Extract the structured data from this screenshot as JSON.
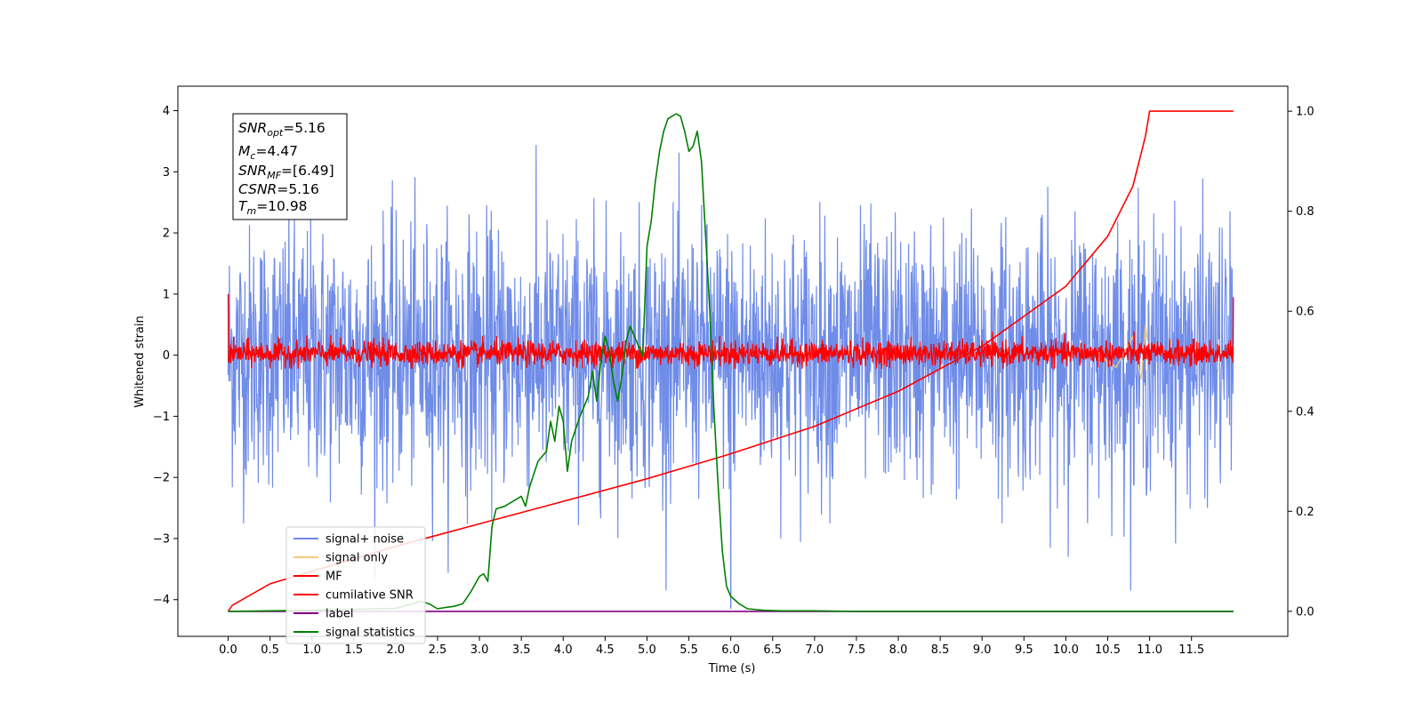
{
  "chart_data": {
    "type": "line",
    "xlabel": "Time (s)",
    "ylabel": "Whitened strain",
    "xlim": [
      -0.6,
      12.65
    ],
    "ylim": [
      -4.6,
      4.4
    ],
    "y2lim": [
      -0.05,
      1.05
    ],
    "xticks": [
      0.0,
      0.5,
      1.0,
      1.5,
      2.0,
      2.5,
      3.0,
      3.5,
      4.0,
      4.5,
      5.0,
      5.5,
      6.0,
      6.5,
      7.0,
      7.5,
      8.0,
      8.5,
      9.0,
      9.5,
      10.0,
      10.5,
      11.0,
      11.5
    ],
    "xtick_labels": [
      "0.0",
      "0.5",
      "1.0",
      "1.5",
      "2.0",
      "2.5",
      "3.0",
      "3.5",
      "4.0",
      "4.5",
      "5.0",
      "5.5",
      "6.0",
      "6.5",
      "7.0",
      "7.5",
      "8.0",
      "8.5",
      "9.0",
      "9.5",
      "10.0",
      "10.5",
      "11.0",
      "11.5"
    ],
    "yticks": [
      4,
      3,
      2,
      1,
      0,
      -1,
      -2,
      -3,
      -4
    ],
    "ytick_labels": [
      "4",
      "3",
      "2",
      "1",
      "0",
      "−1",
      "−2",
      "−3",
      "−4"
    ],
    "y2ticks": [
      1.0,
      0.8,
      0.6,
      0.4,
      0.2,
      0.0
    ],
    "y2tick_labels": [
      "1.0",
      "0.8",
      "0.6",
      "0.4",
      "0.2",
      "0.0"
    ],
    "grid": false,
    "legend_position": "bottom-left",
    "series": [
      {
        "name": "signal+ noise",
        "color": "#6f8ce8",
        "axis": "left",
        "description": "noisy strain, std ~1, x 0 to 12, peaks to about +4 and -3.8"
      },
      {
        "name": "signal only",
        "color": "#f5c97a",
        "axis": "left",
        "x": [
          10.3,
          10.6,
          10.8,
          10.9,
          10.95,
          11.0
        ],
        "y": [
          0.1,
          -0.2,
          0.3,
          -0.4,
          0.5,
          0.0
        ]
      },
      {
        "name": "MF",
        "color": "#ff0000",
        "axis": "left",
        "description": "matched filter output, band about -0.2 to +0.3, spikes to 1.0 at the ends"
      },
      {
        "name": "cumilative SNR",
        "color": "#ff0000",
        "axis": "right",
        "x": [
          0.0,
          0.05,
          0.5,
          1.0,
          2.0,
          3.0,
          4.0,
          5.0,
          6.0,
          7.0,
          8.0,
          9.0,
          9.5,
          10.0,
          10.5,
          10.8,
          10.95,
          11.0,
          12.0
        ],
        "y": [
          0.0,
          0.012,
          0.055,
          0.08,
          0.13,
          0.175,
          0.22,
          0.265,
          0.315,
          0.37,
          0.44,
          0.53,
          0.59,
          0.65,
          0.75,
          0.85,
          0.95,
          1.0,
          1.0
        ]
      },
      {
        "name": "label",
        "color": "#800080",
        "axis": "right",
        "x": [
          0.0,
          12.0
        ],
        "y": [
          0.0,
          0.0
        ]
      },
      {
        "name": "signal statistics",
        "color": "#008000",
        "axis": "right",
        "x": [
          0.0,
          1.0,
          2.0,
          2.2,
          2.3,
          2.4,
          2.5,
          2.6,
          2.7,
          2.8,
          2.9,
          3.0,
          3.05,
          3.1,
          3.15,
          3.2,
          3.3,
          3.4,
          3.5,
          3.55,
          3.6,
          3.7,
          3.8,
          3.85,
          3.9,
          3.95,
          4.0,
          4.05,
          4.1,
          4.2,
          4.3,
          4.35,
          4.4,
          4.45,
          4.5,
          4.55,
          4.6,
          4.65,
          4.7,
          4.75,
          4.8,
          4.85,
          4.9,
          4.95,
          5.0,
          5.05,
          5.1,
          5.15,
          5.2,
          5.25,
          5.3,
          5.35,
          5.4,
          5.45,
          5.5,
          5.55,
          5.6,
          5.65,
          5.7,
          5.75,
          5.8,
          5.85,
          5.9,
          5.95,
          6.0,
          6.1,
          6.2,
          6.4,
          6.6,
          7.0,
          7.5,
          8.0,
          12.0
        ],
        "y": [
          0.0,
          0.002,
          0.006,
          0.015,
          0.02,
          0.015,
          0.005,
          0.008,
          0.01,
          0.015,
          0.04,
          0.07,
          0.075,
          0.06,
          0.17,
          0.205,
          0.21,
          0.22,
          0.23,
          0.21,
          0.25,
          0.3,
          0.32,
          0.38,
          0.34,
          0.41,
          0.38,
          0.28,
          0.34,
          0.39,
          0.43,
          0.48,
          0.42,
          0.5,
          0.55,
          0.52,
          0.46,
          0.42,
          0.47,
          0.54,
          0.57,
          0.55,
          0.53,
          0.51,
          0.73,
          0.78,
          0.86,
          0.92,
          0.96,
          0.985,
          0.99,
          0.995,
          0.99,
          0.96,
          0.92,
          0.93,
          0.96,
          0.9,
          0.75,
          0.6,
          0.4,
          0.25,
          0.12,
          0.05,
          0.03,
          0.015,
          0.005,
          0.002,
          0.001,
          0.001,
          0.0,
          0.0,
          0.0
        ]
      }
    ]
  },
  "stats_box": {
    "snr_opt_main": "SNR",
    "snr_opt_sub": "opt",
    "snr_opt_value": "=5.16",
    "mc_main": "M",
    "mc_sub": "c",
    "mc_value": "=4.47",
    "snr_mf_main": "SNR",
    "snr_mf_sub": "MF",
    "snr_mf_value": "=[6.49]",
    "csnr_main": "CSNR",
    "csnr_value": "=5.16",
    "tm_main": "T",
    "tm_sub": "m",
    "tm_value": "=10.98"
  }
}
